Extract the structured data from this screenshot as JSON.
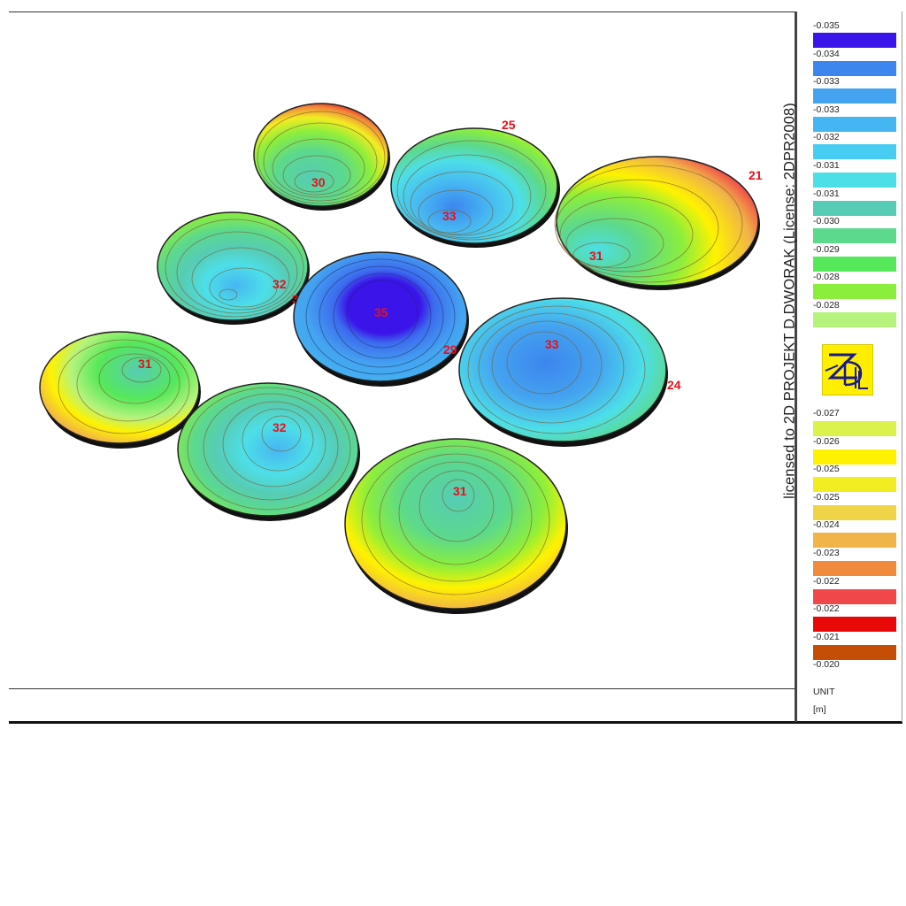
{
  "license_text": "licensed to 2D PROJEKT D.DWORAK (License: 2DPR2008)",
  "legend": {
    "upper_labels": [
      "-0.035",
      "-0.034",
      "-0.033",
      "-0.033",
      "-0.032",
      "-0.031",
      "-0.031",
      "-0.030",
      "-0.029",
      "-0.028",
      "-0.028"
    ],
    "upper_colors": [
      "#3a14e8",
      "#3c86ee",
      "#44a3f0",
      "#46b6f2",
      "#47ccf2",
      "#4ddfe8",
      "#56ccb4",
      "#5cd98c",
      "#56e85a",
      "#8cee3c",
      "#b5f37c"
    ],
    "lower_labels": [
      "-0.027",
      "-0.026",
      "-0.025",
      "-0.025",
      "-0.024",
      "-0.023",
      "-0.022",
      "-0.022",
      "-0.021",
      "-0.020"
    ],
    "lower_colors": [
      "#dcf24c",
      "#fff200",
      "#f2ec22",
      "#f0d448",
      "#f0b448",
      "#f08a3c",
      "#f0484a",
      "#e80808",
      "#c44e06"
    ],
    "unit_label": "UNIT",
    "unit_value": "[m]",
    "logo_icon": "2dpr-logo-icon"
  },
  "plates": [
    {
      "id": "top-left",
      "label": "30"
    },
    {
      "id": "top-middle",
      "label": "33",
      "edge_label": "25"
    },
    {
      "id": "top-right",
      "label": "31",
      "edge_label": "21"
    },
    {
      "id": "mid-left",
      "label": "32",
      "edge_label": "32"
    },
    {
      "id": "center",
      "label": "35",
      "edge_label": "29"
    },
    {
      "id": "mid-right",
      "label": "33",
      "edge_label": "24"
    },
    {
      "id": "far-left",
      "label": "31"
    },
    {
      "id": "lower-left",
      "label": "32"
    },
    {
      "id": "bottom",
      "label": "31"
    }
  ]
}
